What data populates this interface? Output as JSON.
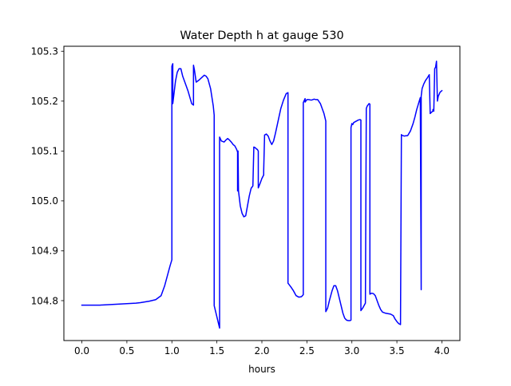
{
  "chart_data": {
    "type": "line",
    "title": "Water Depth h at gauge 530",
    "xlabel": "hours",
    "ylabel": "",
    "xlim": [
      -0.2,
      4.2
    ],
    "ylim": [
      104.72,
      105.31
    ],
    "xticks": [
      0.0,
      0.5,
      1.0,
      1.5,
      2.0,
      2.5,
      3.0,
      3.5,
      4.0
    ],
    "xtick_labels": [
      "0.0",
      "0.5",
      "1.0",
      "1.5",
      "2.0",
      "2.5",
      "3.0",
      "3.5",
      "4.0"
    ],
    "yticks": [
      104.8,
      104.9,
      105.0,
      105.1,
      105.2,
      105.3
    ],
    "ytick_labels": [
      "104.8",
      "104.9",
      "105.0",
      "105.1",
      "105.2",
      "105.3"
    ],
    "grid": false,
    "legend": "none",
    "series": [
      {
        "color": "#0000ff",
        "x": [
          0.0,
          0.2,
          0.4,
          0.6,
          0.65,
          0.75,
          0.82,
          0.88,
          0.92,
          0.95,
          0.98,
          1.0,
          1.0,
          1.01,
          1.01,
          1.02,
          1.04,
          1.06,
          1.08,
          1.1,
          1.12,
          1.15,
          1.18,
          1.22,
          1.24,
          1.24,
          1.25,
          1.27,
          1.3,
          1.33,
          1.36,
          1.38,
          1.4,
          1.43,
          1.46,
          1.47,
          1.47,
          1.49,
          1.51,
          1.53,
          1.53,
          1.55,
          1.58,
          1.6,
          1.62,
          1.64,
          1.66,
          1.68,
          1.7,
          1.72,
          1.73,
          1.73,
          1.735,
          1.735,
          1.74,
          1.76,
          1.78,
          1.8,
          1.82,
          1.84,
          1.86,
          1.88,
          1.9,
          1.91,
          1.91,
          1.93,
          1.94,
          1.95,
          1.96,
          1.96,
          1.98,
          2.0,
          2.02,
          2.02,
          2.03,
          2.05,
          2.07,
          2.09,
          2.11,
          2.13,
          2.15,
          2.18,
          2.21,
          2.24,
          2.27,
          2.29,
          2.29,
          2.32,
          2.35,
          2.38,
          2.41,
          2.44,
          2.46,
          2.46,
          2.48,
          2.48,
          2.5,
          2.52,
          2.55,
          2.58,
          2.6,
          2.62,
          2.65,
          2.67,
          2.69,
          2.71,
          2.71,
          2.73,
          2.75,
          2.78,
          2.8,
          2.82,
          2.84,
          2.86,
          2.88,
          2.9,
          2.92,
          2.94,
          2.96,
          2.98,
          2.99,
          2.99,
          3.0,
          3.01,
          3.02,
          3.03,
          3.05,
          3.07,
          3.09,
          3.1,
          3.1,
          3.12,
          3.15,
          3.16,
          3.16,
          3.17,
          3.19,
          3.2,
          3.2,
          3.22,
          3.24,
          3.26,
          3.28,
          3.3,
          3.32,
          3.34,
          3.37,
          3.4,
          3.43,
          3.46,
          3.48,
          3.5,
          3.52,
          3.54,
          3.55,
          3.55,
          3.58,
          3.62,
          3.65,
          3.68,
          3.7,
          3.72,
          3.74,
          3.76,
          3.77,
          3.77,
          3.78,
          3.8,
          3.82,
          3.84,
          3.85,
          3.86,
          3.86,
          3.87,
          3.88,
          3.9,
          3.9,
          3.91,
          3.92,
          3.93,
          3.94,
          3.95,
          3.96,
          3.98,
          4.0
        ],
        "y": [
          104.791,
          104.791,
          104.793,
          104.795,
          104.796,
          104.799,
          104.802,
          104.81,
          104.83,
          104.85,
          104.87,
          104.882,
          105.27,
          105.275,
          105.195,
          105.21,
          105.24,
          105.258,
          105.265,
          105.265,
          105.25,
          105.235,
          105.22,
          105.195,
          105.192,
          105.272,
          105.263,
          105.238,
          105.242,
          105.247,
          105.252,
          105.25,
          105.245,
          105.225,
          105.19,
          105.172,
          104.79,
          104.775,
          104.76,
          104.745,
          105.128,
          105.12,
          105.118,
          105.122,
          105.125,
          105.122,
          105.118,
          105.113,
          105.11,
          105.103,
          105.098,
          105.02,
          105.02,
          105.1,
          105.02,
          104.99,
          104.975,
          104.968,
          104.97,
          104.99,
          105.01,
          105.025,
          105.03,
          105.104,
          105.108,
          105.106,
          105.104,
          105.103,
          105.1,
          105.026,
          105.035,
          105.045,
          105.052,
          105.06,
          105.132,
          105.134,
          105.13,
          105.12,
          105.113,
          105.12,
          105.135,
          105.16,
          105.185,
          105.202,
          105.215,
          105.217,
          104.835,
          104.828,
          104.82,
          104.81,
          104.807,
          104.808,
          104.812,
          105.197,
          105.205,
          105.198,
          105.203,
          105.203,
          105.202,
          105.204,
          105.203,
          105.203,
          105.195,
          105.185,
          105.175,
          105.16,
          104.778,
          104.785,
          104.8,
          104.82,
          104.83,
          104.83,
          104.82,
          104.805,
          104.79,
          104.775,
          104.765,
          104.761,
          104.76,
          104.76,
          104.761,
          105.147,
          105.155,
          105.153,
          105.157,
          105.158,
          105.16,
          105.162,
          105.163,
          105.162,
          104.78,
          104.785,
          104.795,
          105.18,
          105.185,
          105.19,
          105.195,
          105.194,
          104.813,
          104.815,
          104.814,
          104.81,
          104.8,
          104.79,
          104.782,
          104.777,
          104.775,
          104.774,
          104.773,
          104.77,
          104.763,
          104.758,
          104.754,
          104.752,
          105.133,
          105.132,
          105.13,
          105.131,
          105.14,
          105.155,
          105.168,
          105.183,
          105.195,
          105.207,
          104.822,
          105.21,
          105.225,
          105.235,
          105.242,
          105.247,
          105.25,
          105.253,
          105.25,
          105.175,
          105.177,
          105.18,
          105.183,
          105.18,
          105.265,
          105.268,
          105.28,
          105.2,
          105.21,
          105.218,
          105.221
        ]
      }
    ]
  }
}
